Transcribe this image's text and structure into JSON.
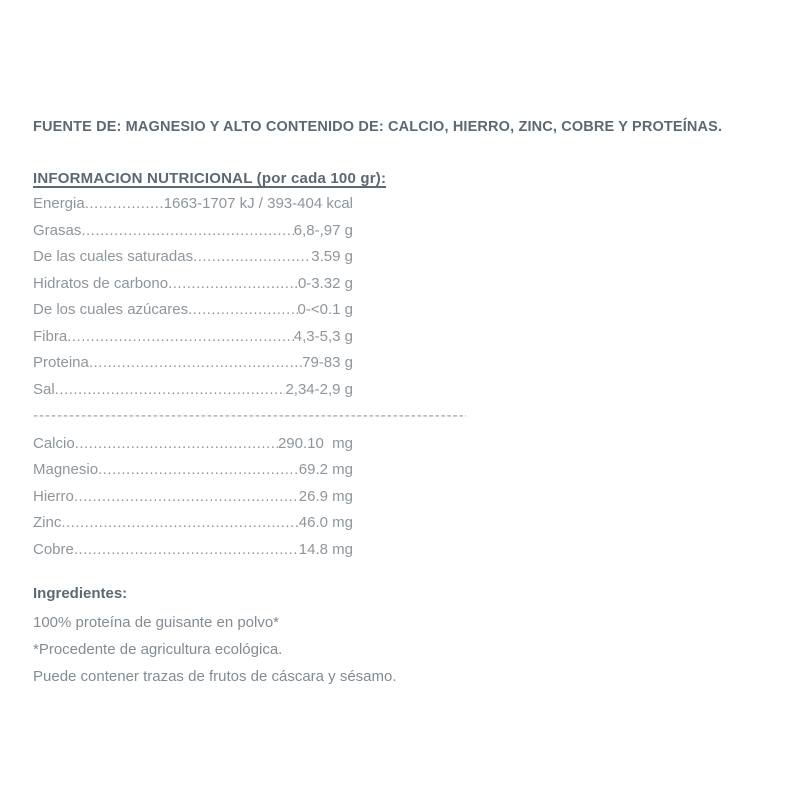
{
  "document": {
    "source_claim": "FUENTE DE: MAGNESIO Y ALTO CONTENIDO DE: CALCIO, HIERRO, ZINC, COBRE Y PROTEÍNAS.",
    "leader_dots": "........................................................................................................................",
    "nutrition": {
      "title": "INFORMACION NUTRICIONAL (por cada 100 gr):",
      "rows": [
        {
          "label": "Energia",
          "value": "1663-1707 kJ / 393-404 kcal"
        },
        {
          "label": "Grasas",
          "value": "6,8-,97 g"
        },
        {
          "label": "De las cuales saturadas",
          "value": "3.59 g"
        },
        {
          "label": "Hidratos de carbono",
          "value": "0-3.32 g"
        },
        {
          "label": "De los cuales azúcares",
          "value": "0-<0.1 g"
        },
        {
          "label": "Fibra",
          "value": "4,3-5,3 g"
        },
        {
          "label": "Proteina",
          "value": "79-83 g"
        },
        {
          "label": "Sal",
          "value": "2,34-2,9 g"
        }
      ],
      "separator": "--------------------------------------------------------------------------------------------------------------",
      "minerals": [
        {
          "label": "Calcio",
          "value": "290.10  mg"
        },
        {
          "label": "Magnesio",
          "value": "69.2 mg"
        },
        {
          "label": "Hierro",
          "value": "26.9 mg"
        },
        {
          "label": "Zinc",
          "value": "46.0 mg"
        },
        {
          "label": "Cobre",
          "value": "14.8 mg"
        }
      ]
    },
    "ingredients": {
      "title": "Ingredientes:",
      "lines": [
        "100% proteína de guisante en polvo*",
        "*Procedente de agricultura ecológica.",
        "Puede contener trazas de frutos de cáscara y sésamo."
      ]
    },
    "colors": {
      "heading_text": "#5c6973",
      "body_text": "#8e969c",
      "separator": "#9aa1a7",
      "background": "#ffffff"
    }
  }
}
